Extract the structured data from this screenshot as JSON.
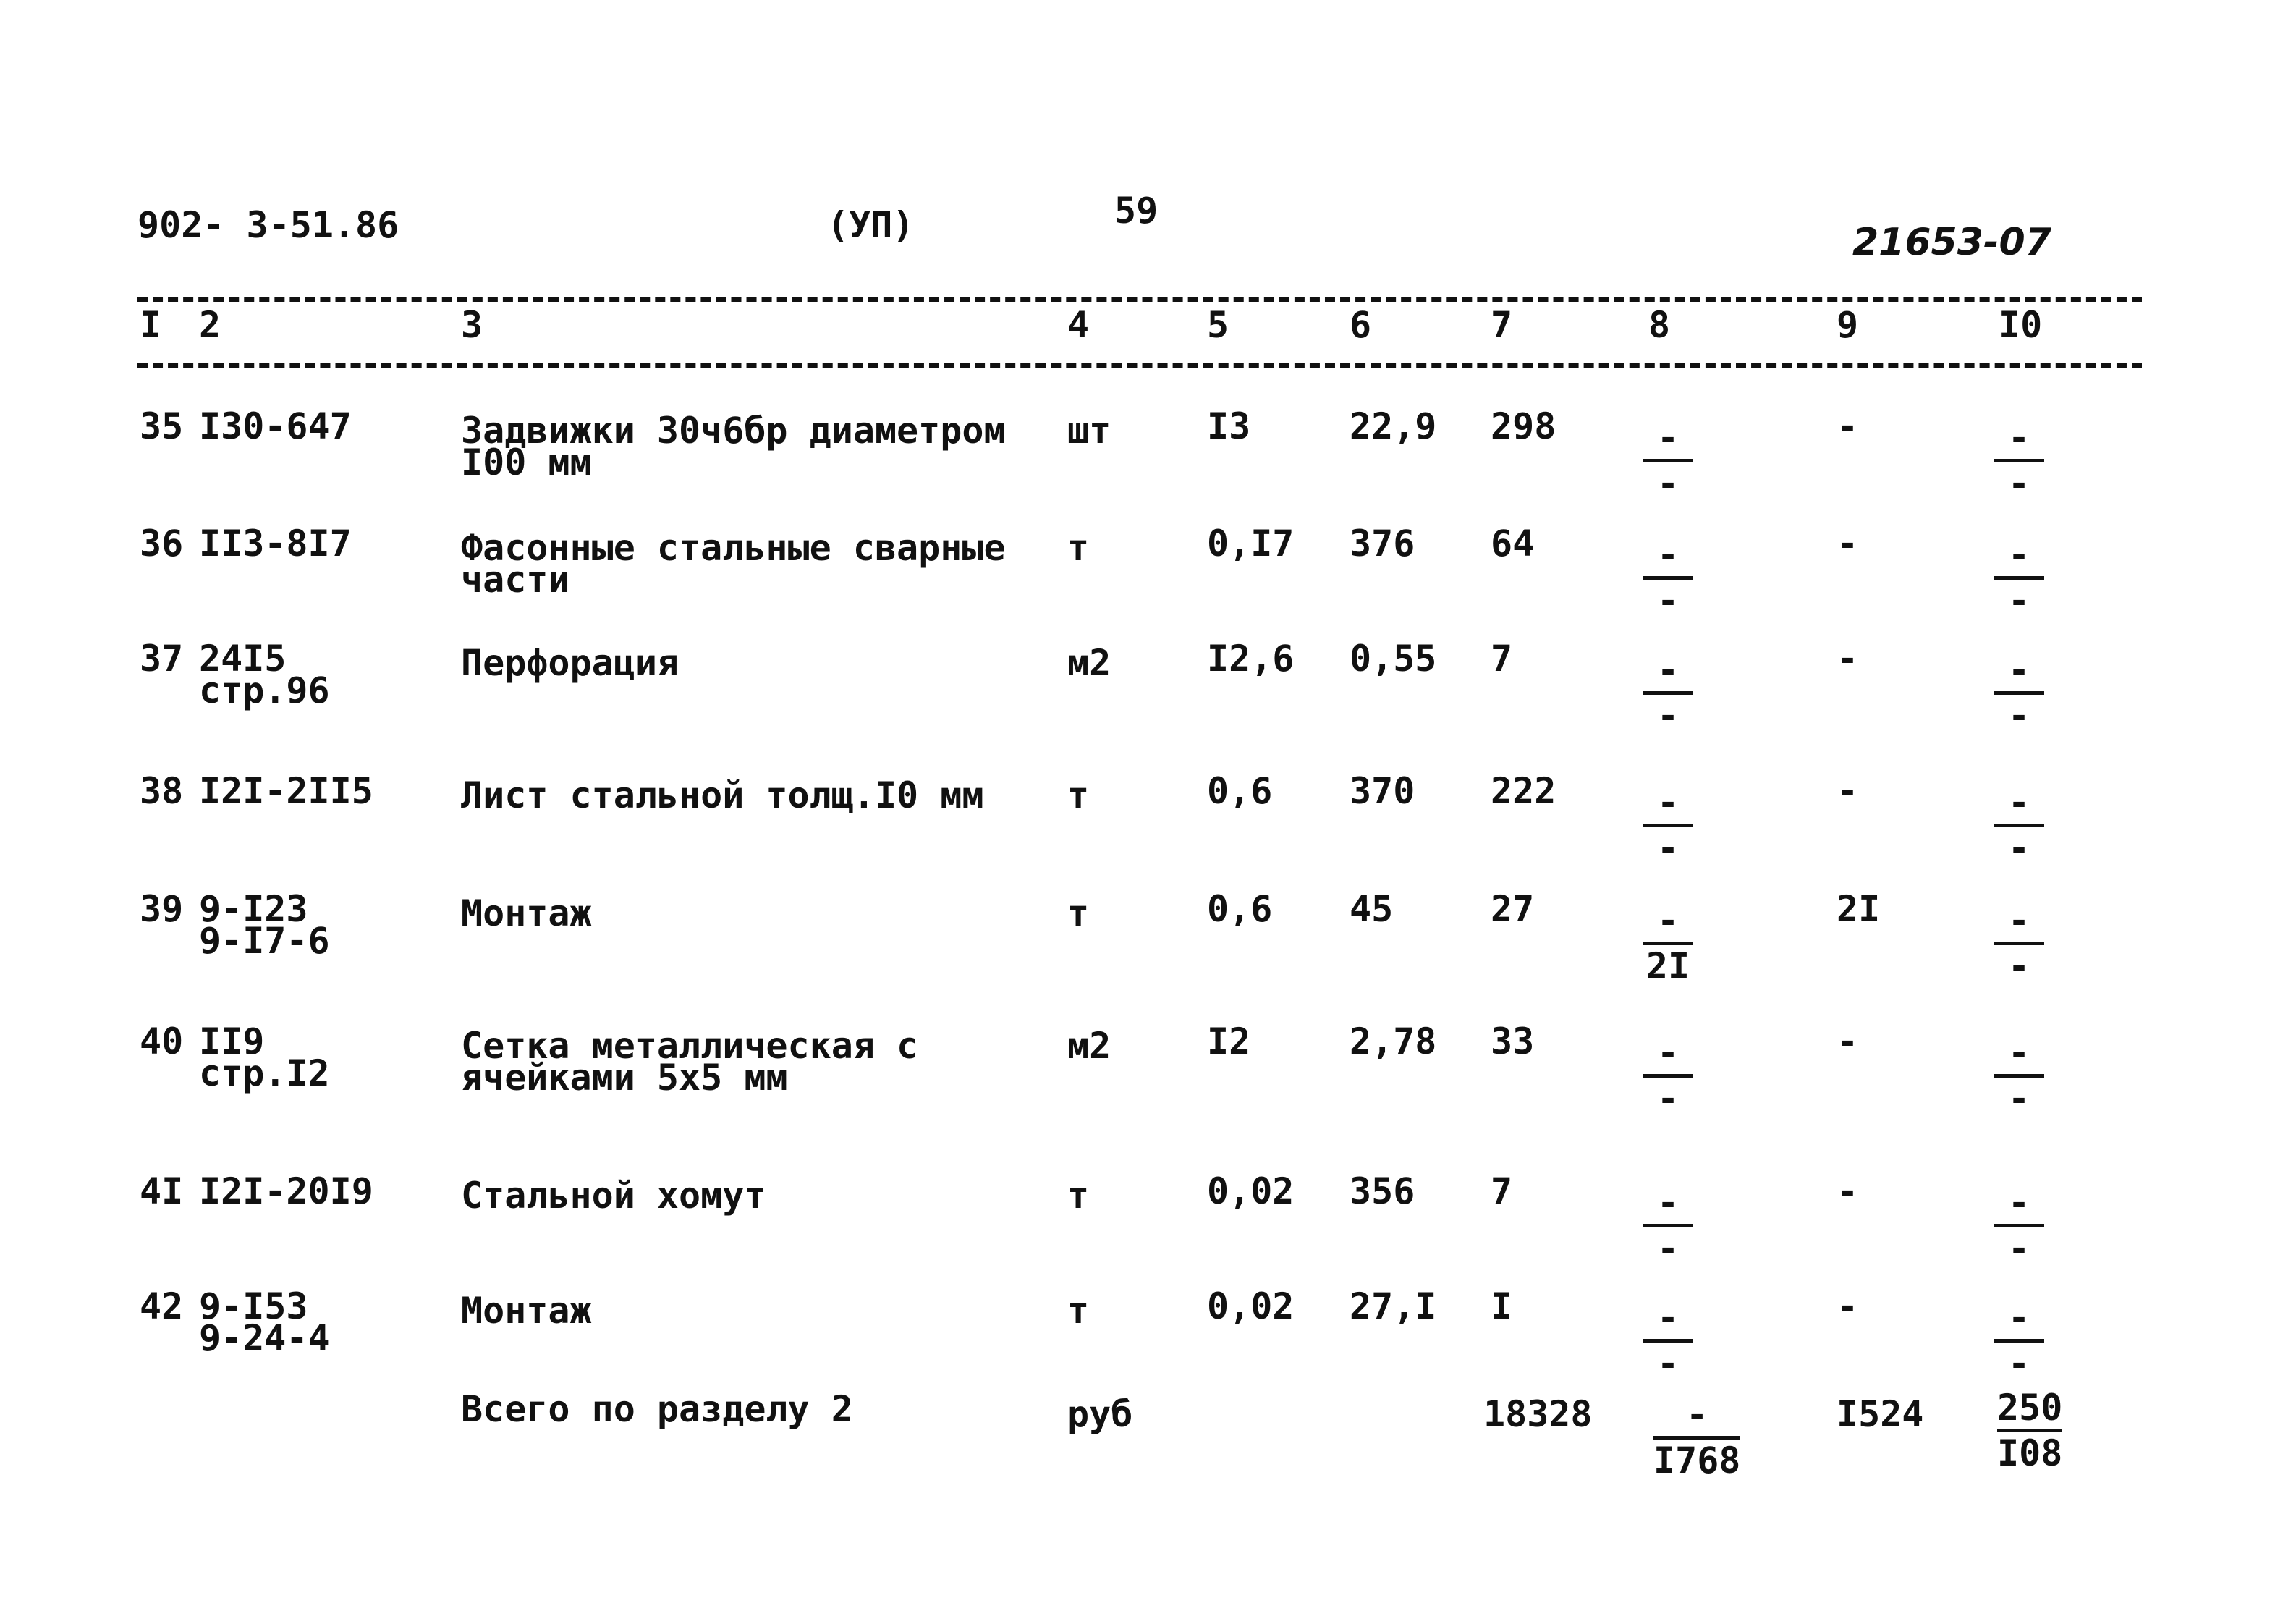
{
  "header": {
    "doc_code": "902- 3-51.86",
    "mark": "(УП)",
    "page": "59",
    "archive_no": "21653-07"
  },
  "columns": [
    "I",
    "2",
    "3",
    "4",
    "5",
    "6",
    "7",
    "8",
    "9",
    "I0"
  ],
  "rows": [
    {
      "no": "35",
      "code": [
        "I30-647"
      ],
      "name": [
        "Задвижки 30ч6бр диаметром",
        "I00 мм"
      ],
      "unit": "шт",
      "c5": "I3",
      "c6": "22,9",
      "c7": "298",
      "c8": {
        "num": "-",
        "den": "-"
      },
      "c9": "-",
      "c10": {
        "num": "-",
        "den": "-"
      }
    },
    {
      "no": "36",
      "code": [
        "II3-8I7"
      ],
      "name": [
        "Фасонные стальные сварные",
        "части"
      ],
      "unit": "т",
      "c5": "0,I7",
      "c6": "376",
      "c7": "64",
      "c8": {
        "num": "-",
        "den": "-"
      },
      "c9": "-",
      "c10": {
        "num": "-",
        "den": "-"
      }
    },
    {
      "no": "37",
      "code": [
        "24I5",
        "стр.96"
      ],
      "name": [
        "Перфорация"
      ],
      "unit": "м2",
      "c5": "I2,6",
      "c6": "0,55",
      "c7": "7",
      "c8": {
        "num": "-",
        "den": "-"
      },
      "c9": "-",
      "c10": {
        "num": "-",
        "den": "-"
      }
    },
    {
      "no": "38",
      "code": [
        "I2I-2II5"
      ],
      "name": [
        "Лист стальной толщ.I0 мм"
      ],
      "unit": "т",
      "c5": "0,6",
      "c6": "370",
      "c7": "222",
      "c8": {
        "num": "-",
        "den": "-"
      },
      "c9": "-",
      "c10": {
        "num": "-",
        "den": "-"
      }
    },
    {
      "no": "39",
      "code": [
        "9-I23",
        "9-I7-6"
      ],
      "name": [
        "Монтаж"
      ],
      "unit": "т",
      "c5": "0,6",
      "c6": "45",
      "c7": "27",
      "c8": {
        "num": "-",
        "den": "2I"
      },
      "c9": "2I",
      "c10": {
        "num": "-",
        "den": "-"
      }
    },
    {
      "no": "40",
      "code": [
        "II9",
        "стр.I2"
      ],
      "name": [
        "Сетка металлическая с",
        "ячейками 5х5 мм"
      ],
      "unit": "м2",
      "c5": "I2",
      "c6": "2,78",
      "c7": "33",
      "c8": {
        "num": "-",
        "den": "-"
      },
      "c9": "-",
      "c10": {
        "num": "-",
        "den": "-"
      }
    },
    {
      "no": "4I",
      "code": [
        "I2I-20I9"
      ],
      "name": [
        "Стальной хомут"
      ],
      "unit": "т",
      "c5": "0,02",
      "c6": "356",
      "c7": "7",
      "c8": {
        "num": "-",
        "den": "-"
      },
      "c9": "-",
      "c10": {
        "num": "-",
        "den": "-"
      }
    },
    {
      "no": "42",
      "code": [
        "9-I53",
        "9-24-4"
      ],
      "name": [
        "Монтаж"
      ],
      "unit": "т",
      "c5": "0,02",
      "c6": "27,I",
      "c7": "I",
      "c8": {
        "num": "-",
        "den": "-"
      },
      "c9": "-",
      "c10": {
        "num": "-",
        "den": "-"
      }
    }
  ],
  "total": {
    "label": "Всего по разделу 2",
    "unit": "руб",
    "c7": "18328",
    "c8": {
      "num": "-",
      "den": "I768"
    },
    "c9": "I524",
    "c10": {
      "num": "250",
      "den": "I08"
    }
  }
}
